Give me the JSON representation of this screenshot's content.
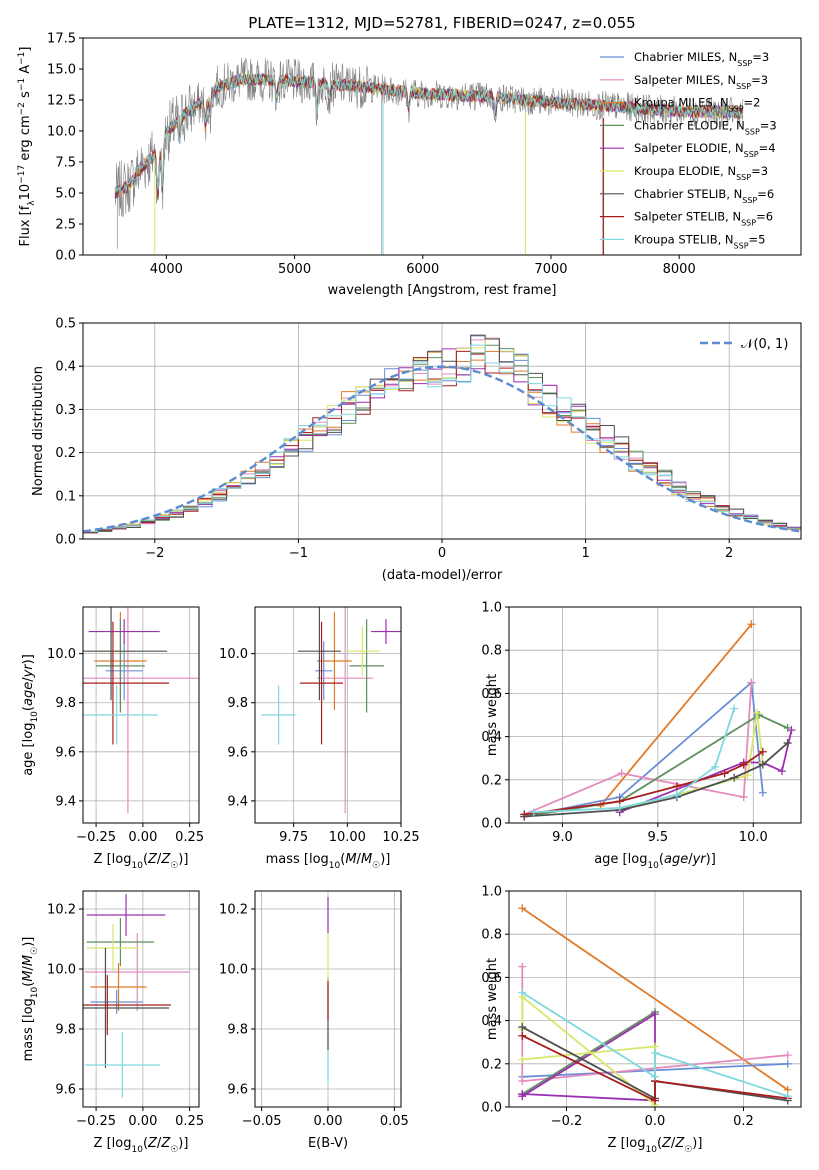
{
  "title": "PLATE=1312, MJD=52781, FIBERID=0247, z=0.055",
  "colors": {
    "Chabrier MILES": "#6a8fd8",
    "Salpeter MILES": "#e58abd",
    "Kroupa MILES": "#e07b2b",
    "Chabrier ELODIE": "#5e8f5e",
    "Salpeter ELODIE": "#9b30b0",
    "Kroupa ELODIE": "#d6e86a",
    "Chabrier STELIB": "#505050",
    "Salpeter STELIB": "#a81e1e",
    "Kroupa STELIB": "#7ed8de",
    "data": "#808080",
    "gauss": "#5b8bd0"
  },
  "legend_spectrum": [
    "Chabrier MILES, N_SSP=3",
    "Salpeter MILES, N_SSP=3",
    "Kroupa MILES, N_SSP=2",
    "Chabrier ELODIE, N_SSP=3",
    "Salpeter ELODIE, N_SSP=4",
    "Kroupa ELODIE, N_SSP=3",
    "Chabrier STELIB, N_SSP=6",
    "Salpeter STELIB, N_SSP=6",
    "Kroupa STELIB, N_SSP=5"
  ],
  "legend_gauss": "𝒩(0, 1)",
  "chart_data": [
    {
      "type": "line",
      "panel": "spectrum",
      "xlabel": "wavelength [Angstrom, rest frame]",
      "ylabel": "Flux [f_λ 10^-17 erg cm^-2 s^-1 A^-1]",
      "xlim": [
        3350,
        8950
      ],
      "ylim": [
        0,
        17.5
      ],
      "xticks": [
        4000,
        5000,
        6000,
        7000,
        8000
      ],
      "yticks": [
        "0.0",
        "2.5",
        "5.0",
        "7.5",
        "10.0",
        "12.5",
        "15.0",
        "17.5"
      ],
      "continuum": {
        "x": [
          3600,
          3700,
          3800,
          3900,
          4000,
          4100,
          4200,
          4300,
          4400,
          4600,
          5000,
          5500,
          6000,
          6500,
          7000,
          7500,
          8000,
          8500
        ],
        "y": [
          5.0,
          5.5,
          7.0,
          8.0,
          9.8,
          11.0,
          11.8,
          12.5,
          13.5,
          14.2,
          14.0,
          13.6,
          13.0,
          12.8,
          12.3,
          12.0,
          11.6,
          11.5
        ]
      }
    },
    {
      "type": "bar",
      "panel": "residual histogram",
      "xlabel": "(data-model)/error",
      "ylabel": "Normed distribution",
      "xlim": [
        -2.5,
        2.5
      ],
      "ylim": [
        0,
        0.5
      ],
      "xticks": [
        "−2",
        "−1",
        "0",
        "1",
        "2"
      ],
      "yticks": [
        "0.0",
        "0.1",
        "0.2",
        "0.3",
        "0.4",
        "0.5"
      ],
      "bin_width": 0.1,
      "gaussian": {
        "mean": 0,
        "sigma": 1
      }
    },
    {
      "type": "scatter",
      "panel": "age vs Z",
      "xlabel": "Z [log10(Z/Z☉)]",
      "ylabel": "age [log10(age/yr)]",
      "xlim": [
        -0.32,
        0.3
      ],
      "ylim": [
        9.31,
        10.19
      ],
      "xticks": [
        "−0.25",
        "0.00",
        "0.25"
      ],
      "yticks": [
        "9.4",
        "9.6",
        "9.8",
        "10.0"
      ],
      "points": [
        {
          "model": "Chabrier MILES",
          "x": -0.1,
          "xerr": 0.1,
          "y": 9.93,
          "yerr": 0.12
        },
        {
          "model": "Salpeter MILES",
          "x": -0.08,
          "xerr": 0.38,
          "y": 9.9,
          "yerr": 0.55
        },
        {
          "model": "Kroupa MILES",
          "x": -0.12,
          "xerr": 0.14,
          "y": 9.97,
          "yerr": 0.2
        },
        {
          "model": "Chabrier ELODIE",
          "x": -0.12,
          "xerr": 0.13,
          "y": 9.95,
          "yerr": 0.19
        },
        {
          "model": "Salpeter ELODIE",
          "x": -0.1,
          "xerr": 0.19,
          "y": 10.09,
          "yerr": 0.05
        },
        {
          "model": "Kroupa ELODIE",
          "x": -0.17,
          "xerr": 0.13,
          "y": 10.01,
          "yerr": 0.1
        },
        {
          "model": "Chabrier STELIB",
          "x": -0.17,
          "xerr": 0.3,
          "y": 10.01,
          "yerr": 0.2
        },
        {
          "model": "Salpeter STELIB",
          "x": -0.16,
          "xerr": 0.3,
          "y": 9.88,
          "yerr": 0.25
        },
        {
          "model": "Kroupa STELIB",
          "x": -0.14,
          "xerr": 0.22,
          "y": 9.75,
          "yerr": 0.12
        }
      ]
    },
    {
      "type": "scatter",
      "panel": "age vs mass",
      "xlabel": "mass [log10(M/M☉)]",
      "ylabel": "",
      "xlim": [
        9.57,
        10.25
      ],
      "ylim": [
        9.31,
        10.19
      ],
      "xticks": [
        "9.75",
        "10.00",
        "10.25"
      ],
      "yticks": [
        "9.4",
        "9.6",
        "9.8",
        "10.0"
      ],
      "points": [
        {
          "model": "Chabrier MILES",
          "x": 9.89,
          "xerr": 0.04,
          "y": 9.93,
          "yerr": 0.12
        },
        {
          "model": "Salpeter MILES",
          "x": 9.99,
          "xerr": 0.13,
          "y": 9.9,
          "yerr": 0.55
        },
        {
          "model": "Kroupa MILES",
          "x": 9.94,
          "xerr": 0.08,
          "y": 9.97,
          "yerr": 0.2
        },
        {
          "model": "Chabrier ELODIE",
          "x": 10.09,
          "xerr": 0.08,
          "y": 9.95,
          "yerr": 0.19
        },
        {
          "model": "Salpeter ELODIE",
          "x": 10.18,
          "xerr": 0.07,
          "y": 10.09,
          "yerr": 0.05
        },
        {
          "model": "Kroupa ELODIE",
          "x": 10.07,
          "xerr": 0.08,
          "y": 10.01,
          "yerr": 0.1
        },
        {
          "model": "Chabrier STELIB",
          "x": 9.87,
          "xerr": 0.1,
          "y": 10.01,
          "yerr": 0.2
        },
        {
          "model": "Salpeter STELIB",
          "x": 9.88,
          "xerr": 0.1,
          "y": 9.88,
          "yerr": 0.25
        },
        {
          "model": "Kroupa STELIB",
          "x": 9.68,
          "xerr": 0.08,
          "y": 9.75,
          "yerr": 0.12
        }
      ]
    },
    {
      "type": "line",
      "panel": "mass weight vs age",
      "xlabel": "age [log10(age/yr)]",
      "ylabel": "mass weight",
      "xlim": [
        8.72,
        10.25
      ],
      "ylim": [
        0,
        1
      ],
      "xticks": [
        "9.0",
        "9.5",
        "10.0"
      ],
      "yticks": [
        "0.0",
        "0.2",
        "0.4",
        "0.6",
        "0.8",
        "1.0"
      ],
      "series": [
        {
          "model": "Kroupa MILES",
          "x": [
            9.2,
            9.99
          ],
          "y": [
            0.08,
            0.92
          ]
        },
        {
          "model": "Chabrier MILES",
          "x": [
            8.8,
            9.3,
            9.99,
            10.05
          ],
          "y": [
            0.03,
            0.12,
            0.65,
            0.14
          ]
        },
        {
          "model": "Salpeter MILES",
          "x": [
            8.8,
            9.31,
            9.95,
            9.99
          ],
          "y": [
            0.04,
            0.23,
            0.12,
            0.65
          ]
        },
        {
          "model": "Chabrier ELODIE",
          "x": [
            8.8,
            9.3,
            10.03,
            10.18
          ],
          "y": [
            0.03,
            0.1,
            0.5,
            0.44
          ]
        },
        {
          "model": "Salpeter ELODIE",
          "x": [
            9.3,
            9.95,
            10.05,
            10.15,
            10.2
          ],
          "y": [
            0.05,
            0.28,
            0.28,
            0.24,
            0.43
          ]
        },
        {
          "model": "Kroupa ELODIE",
          "x": [
            9.3,
            9.97,
            10.02,
            10.05
          ],
          "y": [
            0.06,
            0.22,
            0.51,
            0.28
          ]
        },
        {
          "model": "Chabrier STELIB",
          "x": [
            8.8,
            9.3,
            9.6,
            9.9,
            10.05,
            10.18
          ],
          "y": [
            0.03,
            0.06,
            0.12,
            0.21,
            0.27,
            0.37
          ]
        },
        {
          "model": "Salpeter STELIB",
          "x": [
            8.8,
            9.3,
            9.6,
            9.85,
            9.95,
            10.05
          ],
          "y": [
            0.04,
            0.1,
            0.17,
            0.23,
            0.27,
            0.33
          ]
        },
        {
          "model": "Kroupa STELIB",
          "x": [
            8.85,
            9.3,
            9.6,
            9.8,
            9.9
          ],
          "y": [
            0.05,
            0.07,
            0.13,
            0.26,
            0.53
          ]
        }
      ]
    },
    {
      "type": "scatter",
      "panel": "mass vs Z",
      "xlabel": "Z [log10(Z/Z☉)]",
      "ylabel": "mass [log10(M/M☉)]",
      "xlim": [
        -0.32,
        0.3
      ],
      "ylim": [
        9.54,
        10.26
      ],
      "xticks": [
        "−0.25",
        "0.00",
        "0.25"
      ],
      "yticks": [
        "9.6",
        "9.8",
        "10.0",
        "10.2"
      ],
      "points": [
        {
          "model": "Chabrier MILES",
          "x": -0.14,
          "xerr": 0.14,
          "y": 9.89,
          "yerr": 0.04
        },
        {
          "model": "Salpeter MILES",
          "x": -0.03,
          "xerr": 0.28,
          "y": 9.99,
          "yerr": 0.13
        },
        {
          "model": "Kroupa MILES",
          "x": -0.13,
          "xerr": 0.15,
          "y": 9.94,
          "yerr": 0.08
        },
        {
          "model": "Chabrier ELODIE",
          "x": -0.12,
          "xerr": 0.18,
          "y": 10.09,
          "yerr": 0.08
        },
        {
          "model": "Salpeter ELODIE",
          "x": -0.09,
          "xerr": 0.21,
          "y": 10.18,
          "yerr": 0.07
        },
        {
          "model": "Kroupa ELODIE",
          "x": -0.16,
          "xerr": 0.14,
          "y": 10.07,
          "yerr": 0.08
        },
        {
          "model": "Chabrier STELIB",
          "x": -0.2,
          "xerr": 0.34,
          "y": 9.87,
          "yerr": 0.2
        },
        {
          "model": "Salpeter STELIB",
          "x": -0.19,
          "xerr": 0.34,
          "y": 9.88,
          "yerr": 0.1
        },
        {
          "model": "Kroupa STELIB",
          "x": -0.11,
          "xerr": 0.2,
          "y": 9.68,
          "yerr": 0.11
        }
      ]
    },
    {
      "type": "scatter",
      "panel": "mass vs E(B-V)",
      "xlabel": "E(B-V)",
      "ylabel": "",
      "xlim": [
        -0.055,
        0.055
      ],
      "ylim": [
        9.54,
        10.26
      ],
      "xticks": [
        "−0.05",
        "0.00",
        "0.05"
      ],
      "yticks": [
        "9.6",
        "9.8",
        "10.0",
        "10.2"
      ],
      "points": [
        {
          "model": "Kroupa STELIB",
          "x": 0.0,
          "y": 9.7,
          "yerr": 0.08
        },
        {
          "model": "Chabrier STELIB",
          "x": 0.0,
          "y": 9.85,
          "yerr": 0.12
        },
        {
          "model": "Salpeter STELIB",
          "x": 0.0,
          "y": 9.9,
          "yerr": 0.07
        },
        {
          "model": "Kroupa ELODIE",
          "x": 0.0,
          "y": 10.05,
          "yerr": 0.09
        },
        {
          "model": "Salpeter ELODIE",
          "x": 0.0,
          "y": 10.18,
          "yerr": 0.06
        }
      ]
    },
    {
      "type": "line",
      "panel": "mass weight vs Z",
      "xlabel": "Z [log10(Z/Z☉)]",
      "ylabel": "mass weight",
      "xlim": [
        -0.33,
        0.33
      ],
      "ylim": [
        0,
        1
      ],
      "xticks": [
        "−0.2",
        "0.0",
        "0.2"
      ],
      "yticks": [
        "0.0",
        "0.2",
        "0.4",
        "0.6",
        "0.8",
        "1.0"
      ],
      "series": [
        {
          "model": "Kroupa MILES",
          "x": [
            -0.3,
            0.3
          ],
          "y": [
            0.92,
            0.08
          ]
        },
        {
          "model": "Chabrier MILES",
          "x": [
            -0.3,
            0.3
          ],
          "y": [
            0.14,
            0.2
          ]
        },
        {
          "model": "Salpeter MILES",
          "x": [
            -0.3,
            -0.3,
            0.3
          ],
          "y": [
            0.65,
            0.12,
            0.24
          ]
        },
        {
          "model": "Chabrier ELODIE",
          "x": [
            -0.3,
            0.0
          ],
          "y": [
            0.06,
            0.44
          ]
        },
        {
          "model": "Salpeter ELODIE",
          "x": [
            -0.3,
            0.0,
            0.0,
            -0.3
          ],
          "y": [
            0.05,
            0.43,
            0.03,
            0.06
          ]
        },
        {
          "model": "Kroupa ELODIE",
          "x": [
            -0.3,
            0.0,
            0.0,
            -0.3,
            -0.3
          ],
          "y": [
            0.22,
            0.28,
            0.01,
            0.51,
            0.36
          ]
        },
        {
          "model": "Chabrier STELIB",
          "x": [
            -0.3,
            0.0,
            0.0,
            0.3
          ],
          "y": [
            0.37,
            0.04,
            0.12,
            0.03
          ]
        },
        {
          "model": "Salpeter STELIB",
          "x": [
            -0.3,
            0.0,
            0.0,
            0.3
          ],
          "y": [
            0.33,
            0.03,
            0.12,
            0.04
          ]
        },
        {
          "model": "Kroupa STELIB",
          "x": [
            -0.3,
            0.0,
            0.0,
            0.3
          ],
          "y": [
            0.53,
            0.14,
            0.25,
            0.05
          ]
        }
      ]
    }
  ]
}
